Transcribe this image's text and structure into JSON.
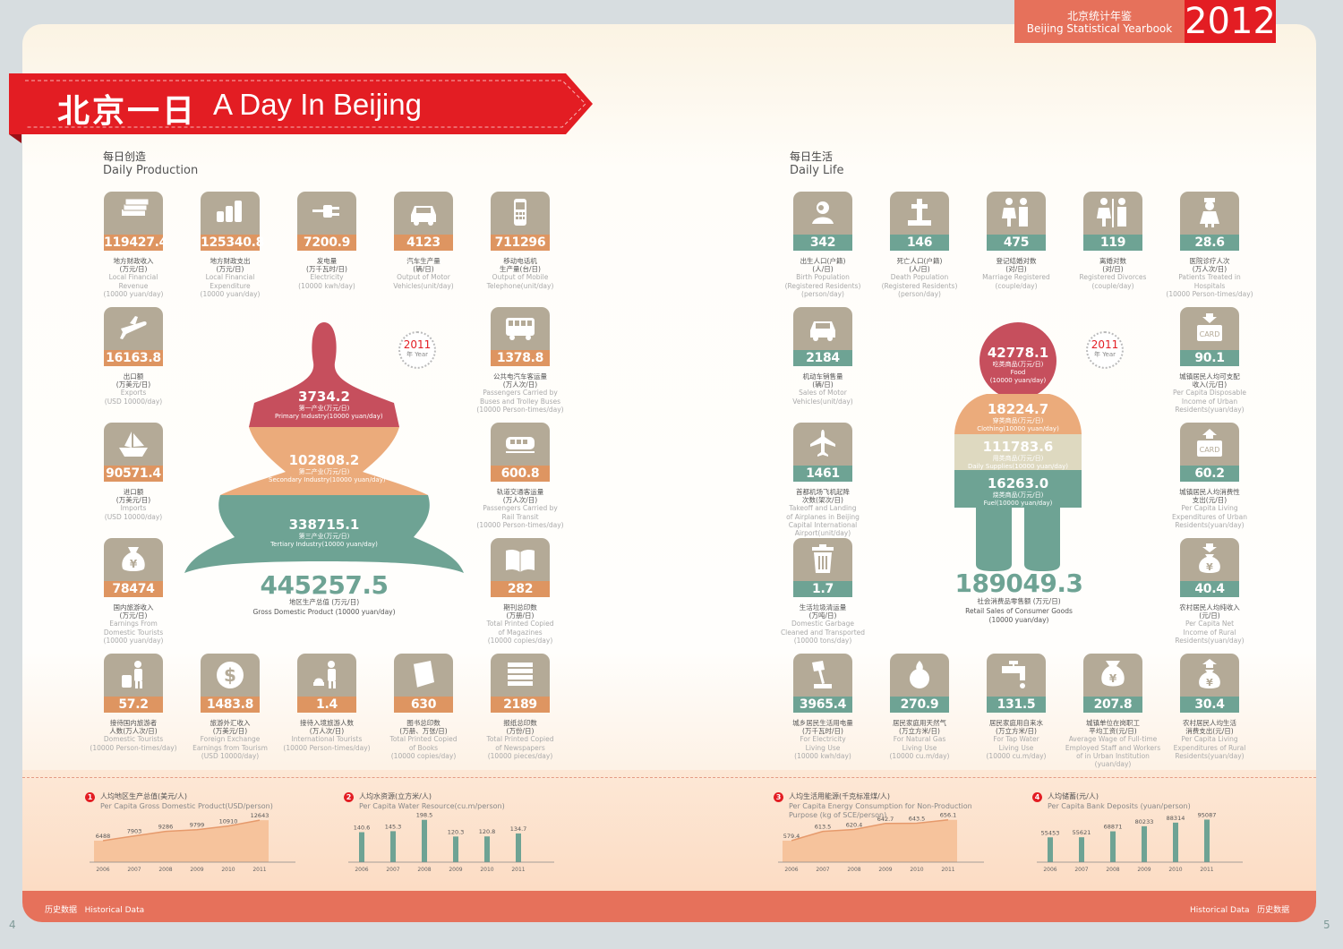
{
  "header": {
    "yearbook_cn": "北京统计年鉴",
    "yearbook_en": "Beijing Statistical Yearbook",
    "year": "2012"
  },
  "title": {
    "cn": "北京一日",
    "en": "A Day In Beijing"
  },
  "colors": {
    "red": "#e31d23",
    "salmon": "#e6715b",
    "orange": "#de9561",
    "teal": "#6ea394",
    "tile": "#b4aa97",
    "rose": "#c64f5d",
    "peach": "#ebab7b"
  },
  "production": {
    "title_cn": "每日创造",
    "title_en": "Daily Production",
    "tiles": [
      {
        "icon": "money-stack-icon",
        "value": "119427.4",
        "color": "o",
        "cap": [
          "地方财政收入",
          "(万元/日)",
          "Local Financial",
          "Revenue",
          "(10000 yuan/day)"
        ]
      },
      {
        "icon": "coins-icon",
        "value": "125340.8",
        "color": "o",
        "cap": [
          "地方财政支出",
          "(万元/日)",
          "Local Financial",
          "Expenditure",
          "(10000 yuan/day)"
        ]
      },
      {
        "icon": "plug-icon",
        "value": "7200.9",
        "color": "o",
        "cap": [
          "发电量",
          "(万千瓦时/日)",
          "Electricity",
          "(10000 kwh/day)"
        ]
      },
      {
        "icon": "car-icon",
        "value": "4123",
        "color": "o",
        "cap": [
          "汽车生产量",
          "(辆/日)",
          "Output of Motor",
          "Vehicles(unit/day)"
        ]
      },
      {
        "icon": "mobile-phone-icon",
        "value": "711296",
        "color": "o",
        "cap": [
          "移动电话机",
          "生产量(台/日)",
          "Output of Mobile",
          "Telephone(unit/day)"
        ]
      },
      {
        "icon": "airplane-icon",
        "value": "16163.8",
        "color": "o",
        "cap": [
          "出口额",
          "(万美元/日)",
          "Exports",
          "(USD 10000/day)"
        ]
      },
      {
        "icon": "bus-icon",
        "value": "1378.8",
        "color": "o",
        "cap": [
          "公共电汽车客运量",
          "(万人次/日)",
          "Passengers Carried by",
          "Buses and Trolley Buses",
          "(10000 Person-times/day)"
        ]
      },
      {
        "icon": "ship-icon",
        "value": "90571.4",
        "color": "o",
        "cap": [
          "进口额",
          "(万美元/日)",
          "Imports",
          "(USD 10000/day)"
        ]
      },
      {
        "icon": "train-icon",
        "value": "600.8",
        "color": "o",
        "cap": [
          "轨道交通客运量",
          "(万人次/日)",
          "Passengers Carried by",
          "Rail Transit",
          "(10000 Person-times/day)"
        ]
      },
      {
        "icon": "money-bag-icon",
        "value": "78474",
        "color": "o",
        "cap": [
          "国内旅游收入",
          "(万元/日)",
          "Earnings From",
          "Domestic Tourists",
          "(10000 yuan/day)"
        ]
      },
      {
        "icon": "open-book-icon",
        "value": "282",
        "color": "o",
        "cap": [
          "期刊总印数",
          "(万册/日)",
          "Total Printed Copied",
          "of Magazines",
          "(10000 copies/day)"
        ]
      },
      {
        "icon": "tourist-luggage-icon",
        "value": "57.2",
        "color": "o",
        "cap": [
          "接待国内旅游者",
          "人数(万人次/日)",
          "Domestic Tourists",
          "(10000 Person-times/day)"
        ]
      },
      {
        "icon": "dollar-coin-icon",
        "value": "1483.8",
        "color": "o",
        "cap": [
          "旅游外汇收入",
          "(万美元/日)",
          "Foreign Exchange",
          "Earnings from Tourism",
          "(USD 10000/day)"
        ]
      },
      {
        "icon": "intl-tourist-icon",
        "value": "1.4",
        "color": "o",
        "cap": [
          "接待入境旅游人数",
          "(万人次/日)",
          "International Tourists",
          "(10000 Person-times/day)"
        ]
      },
      {
        "icon": "book-icon",
        "value": "630",
        "color": "o",
        "cap": [
          "图书总印数",
          "(万册、万张/日)",
          "Total Printed Copied",
          "of Books",
          "(10000 copies/day)"
        ]
      },
      {
        "icon": "newspaper-stack-icon",
        "value": "2189",
        "color": "o",
        "cap": [
          "报纸总印数",
          "(万份/日)",
          "Total Printed Copied",
          "of Newspapers",
          "(10000 pieces/day)"
        ]
      }
    ],
    "year_badge": {
      "year": "2011",
      "text": "年 Year"
    },
    "figure": {
      "primary": {
        "value": "3734.2",
        "label_cn": "第一产业(万元/日)",
        "label_en": "Primary Industry(10000 yuan/day)"
      },
      "secondary": {
        "value": "102808.2",
        "label_cn": "第二产业(万元/日)",
        "label_en": "Secondary Industry(10000 yuan/day)"
      },
      "tertiary": {
        "value": "338715.1",
        "label_cn": "第三产业(万元/日)",
        "label_en": "Tertiary Industry(10000 yuan/day)"
      },
      "total_value": "445257.5",
      "total_label_cn": "地区生产总值 (万元/日)",
      "total_label_en": "Gross Domestic Product (10000 yuan/day)"
    }
  },
  "life": {
    "title_cn": "每日生活",
    "title_en": "Daily Life",
    "tiles": [
      {
        "icon": "baby-icon",
        "value": "342",
        "color": "g",
        "cap": [
          "出生人口(户籍)",
          "(人/日)",
          "Birth Population",
          "(Registered Residents)",
          "(person/day)"
        ]
      },
      {
        "icon": "grave-cross-icon",
        "value": "146",
        "color": "g",
        "cap": [
          "死亡人口(户籍)",
          "(人/日)",
          "Death Population",
          "(Registered Residents)",
          "(person/day)"
        ]
      },
      {
        "icon": "couple-icon",
        "value": "475",
        "color": "g",
        "cap": [
          "登记结婚对数",
          "(对/日)",
          "Marriage Registered",
          "(couple/day)"
        ]
      },
      {
        "icon": "divorce-icon",
        "value": "119",
        "color": "g",
        "cap": [
          "离婚对数",
          "(对/日)",
          "Registered Divorces",
          "(couple/day)"
        ]
      },
      {
        "icon": "nurse-icon",
        "value": "28.6",
        "color": "g",
        "cap": [
          "医院诊疗人次",
          "(万人次/日)",
          "Patients Treated in",
          "Hospitals",
          "(10000 Person-times/day)"
        ]
      },
      {
        "icon": "car-sales-icon",
        "value": "2184",
        "color": "g",
        "cap": [
          "机动车销售量",
          "(辆/日)",
          "Sales of Motor",
          "Vehicles(unit/day)"
        ]
      },
      {
        "icon": "card-in-icon",
        "value": "90.1",
        "color": "g",
        "cap": [
          "城镇居民人均可支配",
          "收入(元/日)",
          "Per Capita Disposable",
          "Income of Urban",
          "Residents(yuan/day)"
        ]
      },
      {
        "icon": "airport-plane-icon",
        "value": "1461",
        "color": "g",
        "cap": [
          "首都机场飞机起降",
          "次数(架次/日)",
          "Takeoff and Landing",
          "of Airplanes in Beijing",
          "Capital International",
          "Airport(unit/day)"
        ]
      },
      {
        "icon": "card-out-icon",
        "value": "60.2",
        "color": "g",
        "cap": [
          "城镇居民人均消费性",
          "支出(元/日)",
          "Per Capita Living",
          "Expenditures of Urban",
          "Residents(yuan/day)"
        ]
      },
      {
        "icon": "trash-can-icon",
        "value": "1.7",
        "color": "g",
        "cap": [
          "生活垃圾清运量",
          "(万吨/日)",
          "Domestic Garbage",
          "Cleaned and Transported",
          "(10000 tons/day)"
        ]
      },
      {
        "icon": "rural-income-bag-icon",
        "value": "40.4",
        "color": "g",
        "cap": [
          "农村居民人均纯收入",
          "(元/日)",
          "Per Capita Net",
          "Income of Rural",
          "Residents(yuan/day)"
        ]
      },
      {
        "icon": "desk-lamp-icon",
        "value": "3965.4",
        "color": "g",
        "cap": [
          "城乡居民生活用电量",
          "(万千瓦时/日)",
          "For Electricity",
          "Living Use",
          "(10000 kwh/day)"
        ]
      },
      {
        "icon": "gas-flame-icon",
        "value": "270.9",
        "color": "g",
        "cap": [
          "居民家庭用天然气",
          "(万立方米/日)",
          "For Natural Gas",
          "Living Use",
          "(10000 cu.m/day)"
        ]
      },
      {
        "icon": "water-tap-icon",
        "value": "131.5",
        "color": "g",
        "cap": [
          "居民家庭用自来水",
          "(万立方米/日)",
          "For Tap Water",
          "Living Use",
          "(10000 cu.m/day)"
        ]
      },
      {
        "icon": "wage-bag-icon",
        "value": "207.8",
        "color": "g",
        "cap": [
          "城镇单位在岗职工",
          "平均工资(元/日)",
          "Average Wage of Full-time",
          "Employed Staff and Workers",
          "of in Urban Institution",
          "(yuan/day)"
        ]
      },
      {
        "icon": "rural-spend-bag-icon",
        "value": "30.4",
        "color": "g",
        "cap": [
          "农村居民人均生活",
          "消费支出(元/日)",
          "Per Capita Living",
          "Expenditures of Rural",
          "Residents(yuan/day)"
        ]
      }
    ],
    "year_badge": {
      "year": "2011",
      "text": "年 Year"
    },
    "figure": {
      "food": {
        "value": "42778.1",
        "label_cn": "吃类商品(万元/日)",
        "label_en": "Food",
        "label_unit": "(10000 yuan/day)"
      },
      "clothing": {
        "value": "18224.7",
        "label_cn": "穿类商品(万元/日)",
        "label_en": "Clothing(10000 yuan/day)"
      },
      "daily": {
        "value": "111783.6",
        "label_cn": "用类商品(万元/日)",
        "label_en": "Daily Supplies(10000 yuan/day)"
      },
      "fuel": {
        "value": "16263.0",
        "label_cn": "烧类商品(万元/日)",
        "label_en": "Fuel(10000 yuan/day)"
      },
      "total_value": "189049.3",
      "total_label_cn": "社会消费品零售额 (万元/日)",
      "total_label_en": "Retail Sales of Consumer Goods",
      "total_label_unit": "(10000 yuan/day)"
    }
  },
  "chart_data": [
    {
      "type": "area",
      "num": "1",
      "title_cn": "人均地区生产总值(美元/人)",
      "title_en": "Per Capita Gross Domestic Product(USD/person)",
      "x": [
        "2006",
        "2007",
        "2008",
        "2009",
        "2010",
        "2011"
      ],
      "values": [
        6488,
        7903,
        9286,
        9799,
        10910,
        12643
      ],
      "labels": [
        "6488",
        "7903",
        "9286",
        "9799",
        "10910",
        "12643"
      ],
      "ylim": [
        0,
        13500
      ]
    },
    {
      "type": "bar",
      "num": "2",
      "title_cn": "人均水资源(立方米/人)",
      "title_en": "Per Capita Water Resource(cu.m/person)",
      "x": [
        "2006",
        "2007",
        "2008",
        "2009",
        "2010",
        "2011"
      ],
      "values": [
        140.6,
        145.3,
        198.5,
        120.3,
        120.8,
        134.7
      ],
      "labels": [
        "140.6",
        "145.3",
        "198.5",
        "120.3",
        "120.8",
        "134.7"
      ],
      "ylim": [
        0,
        210
      ]
    },
    {
      "type": "area",
      "num": "3",
      "title_cn": "人均生活用能源(千克标准煤/人)",
      "title_en": "Per Capita Energy Consumption for Non-Production",
      "title_en2": "Purpose (kg of SCE/person)",
      "x": [
        "2006",
        "2007",
        "2008",
        "2009",
        "2010",
        "2011"
      ],
      "values": [
        579.4,
        613.5,
        620.4,
        642.7,
        643.5,
        656.1
      ],
      "labels": [
        "579.4",
        "613.5",
        "620.4",
        "642.7",
        "643.5",
        "656.1"
      ],
      "ylim": [
        500,
        665
      ]
    },
    {
      "type": "bar",
      "num": "4",
      "title_cn": "人均储蓄(元/人)",
      "title_en": "Per Capita Bank Deposits (yuan/person)",
      "x": [
        "2006",
        "2007",
        "2008",
        "2009",
        "2010",
        "2011"
      ],
      "values": [
        55453,
        55621,
        68871,
        80233,
        88314,
        95087
      ],
      "labels": [
        "55453",
        "55621",
        "68871",
        "80233",
        "88314",
        "95087"
      ],
      "ylim": [
        0,
        100000
      ]
    }
  ],
  "footer": {
    "left_cn": "历史数据",
    "left_en": "Historical Data",
    "right_en": "Historical Data",
    "right_cn": "历史数据"
  },
  "page_numbers": {
    "left": "4",
    "right": "5"
  }
}
